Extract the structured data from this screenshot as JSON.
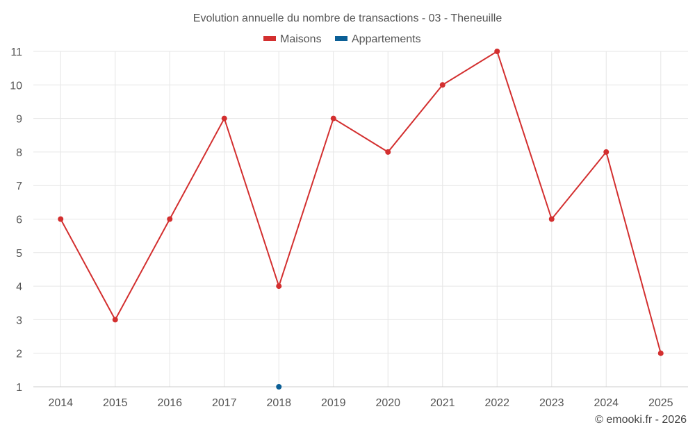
{
  "chart_data": {
    "type": "line",
    "title": "Evolution annuelle du nombre de transactions - 03 - Theneuille",
    "categories": [
      "2014",
      "2015",
      "2016",
      "2017",
      "2018",
      "2019",
      "2020",
      "2021",
      "2022",
      "2023",
      "2024",
      "2025"
    ],
    "series": [
      {
        "name": "Maisons",
        "color": "#d32f2f",
        "values": [
          6,
          3,
          6,
          9,
          4,
          9,
          8,
          10,
          11,
          6,
          8,
          2
        ]
      },
      {
        "name": "Appartements",
        "color": "#0b5f96",
        "values": [
          null,
          null,
          null,
          null,
          1,
          null,
          null,
          null,
          null,
          null,
          null,
          null
        ]
      }
    ],
    "ylim": [
      1,
      11
    ],
    "yticks": [
      1,
      2,
      3,
      4,
      5,
      6,
      7,
      8,
      9,
      10,
      11
    ],
    "xlabel": "",
    "ylabel": "",
    "grid": true,
    "legend": "top-center"
  },
  "credit": "© emooki.fr - 2026"
}
